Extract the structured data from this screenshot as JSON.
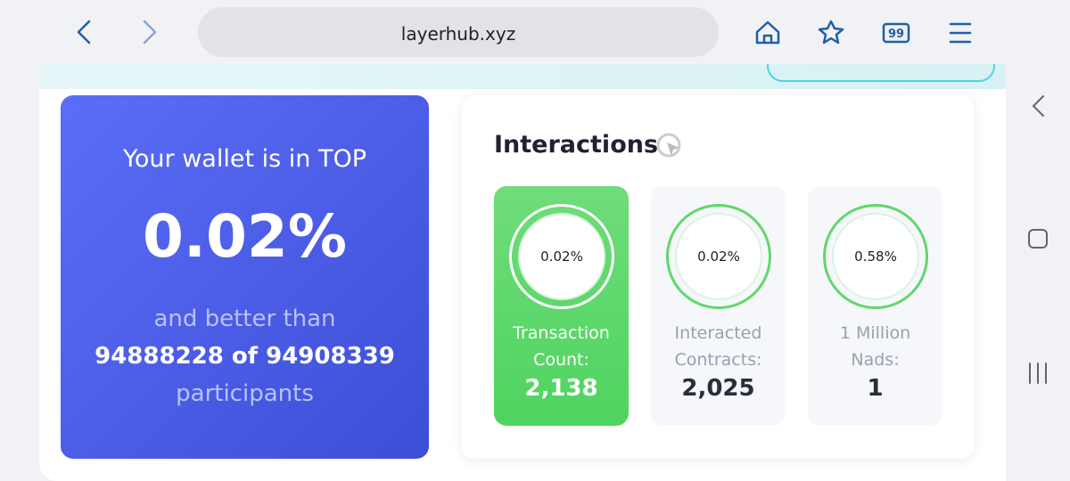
{
  "browser": {
    "url": "layerhub.xyz",
    "tabs_count": "99"
  },
  "rank_card": {
    "heading": "Your wallet is in TOP",
    "percent": "0.02%",
    "line1": "and better than",
    "line2": "94888228 of 94908339",
    "line3": "participants"
  },
  "interactions": {
    "title": "Interactions",
    "cards": [
      {
        "percent": "0.02%",
        "label": "Transaction Count:",
        "value": "2,138"
      },
      {
        "percent": "0.02%",
        "label": "Interacted Contracts:",
        "value": "2,025"
      },
      {
        "percent": "0.58%",
        "label": "1 Million Nads:",
        "value": "1"
      }
    ]
  }
}
